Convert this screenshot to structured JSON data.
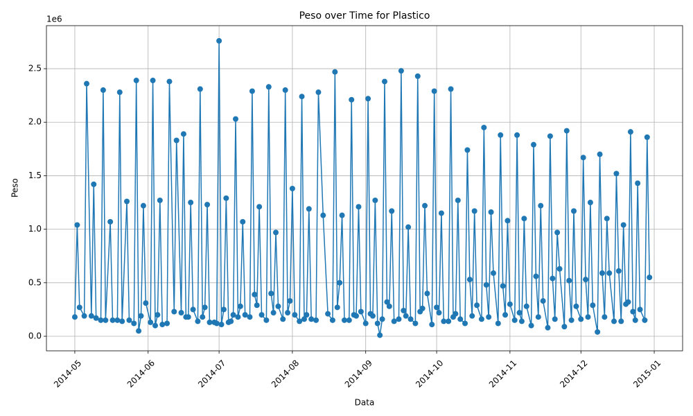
{
  "chart_data": {
    "type": "line",
    "title": "Peso over Time for Plastico",
    "x_label": "Data",
    "y_label": "Peso",
    "y_offset_label": "1e6",
    "grid": true,
    "marker": "circle",
    "xlim": [
      "2014-04-19",
      "2015-01-13"
    ],
    "ylim": [
      -136000,
      2902000
    ],
    "xticks": [
      {
        "value": "2014-05-01",
        "label": "2014-05"
      },
      {
        "value": "2014-06-01",
        "label": "2014-06"
      },
      {
        "value": "2014-07-01",
        "label": "2014-07"
      },
      {
        "value": "2014-08-01",
        "label": "2014-08"
      },
      {
        "value": "2014-09-01",
        "label": "2014-09"
      },
      {
        "value": "2014-10-01",
        "label": "2014-10"
      },
      {
        "value": "2014-11-01",
        "label": "2014-11"
      },
      {
        "value": "2014-12-01",
        "label": "2014-12"
      },
      {
        "value": "2015-01-01",
        "label": "2015-01"
      }
    ],
    "yticks": [
      {
        "value": 0,
        "label": "0.0"
      },
      {
        "value": 500000,
        "label": "0.5"
      },
      {
        "value": 1000000,
        "label": "1.0"
      },
      {
        "value": 1500000,
        "label": "1.5"
      },
      {
        "value": 2000000,
        "label": "2.0"
      },
      {
        "value": 2500000,
        "label": "2.5"
      }
    ],
    "x": [
      "2014-05-01",
      "2014-05-02",
      "2014-05-03",
      "2014-05-05",
      "2014-05-06",
      "2014-05-08",
      "2014-05-09",
      "2014-05-10",
      "2014-05-12",
      "2014-05-13",
      "2014-05-14",
      "2014-05-16",
      "2014-05-17",
      "2014-05-19",
      "2014-05-20",
      "2014-05-21",
      "2014-05-23",
      "2014-05-24",
      "2014-05-26",
      "2014-05-27",
      "2014-05-28",
      "2014-05-29",
      "2014-05-30",
      "2014-05-31",
      "2014-06-02",
      "2014-06-03",
      "2014-06-04",
      "2014-06-05",
      "2014-06-06",
      "2014-06-07",
      "2014-06-09",
      "2014-06-10",
      "2014-06-12",
      "2014-06-13",
      "2014-06-15",
      "2014-06-16",
      "2014-06-17",
      "2014-06-18",
      "2014-06-19",
      "2014-06-20",
      "2014-06-22",
      "2014-06-23",
      "2014-06-24",
      "2014-06-25",
      "2014-06-26",
      "2014-06-27",
      "2014-06-29",
      "2014-06-30",
      "2014-07-01",
      "2014-07-02",
      "2014-07-03",
      "2014-07-04",
      "2014-07-05",
      "2014-07-06",
      "2014-07-07",
      "2014-07-08",
      "2014-07-09",
      "2014-07-10",
      "2014-07-11",
      "2014-07-12",
      "2014-07-14",
      "2014-07-15",
      "2014-07-16",
      "2014-07-17",
      "2014-07-18",
      "2014-07-19",
      "2014-07-21",
      "2014-07-22",
      "2014-07-23",
      "2014-07-24",
      "2014-07-25",
      "2014-07-26",
      "2014-07-28",
      "2014-07-29",
      "2014-07-30",
      "2014-07-31",
      "2014-08-01",
      "2014-08-02",
      "2014-08-04",
      "2014-08-05",
      "2014-08-06",
      "2014-08-07",
      "2014-08-08",
      "2014-08-09",
      "2014-08-11",
      "2014-08-12",
      "2014-08-14",
      "2014-08-16",
      "2014-08-18",
      "2014-08-19",
      "2014-08-20",
      "2014-08-21",
      "2014-08-22",
      "2014-08-23",
      "2014-08-25",
      "2014-08-26",
      "2014-08-27",
      "2014-08-28",
      "2014-08-29",
      "2014-08-30",
      "2014-09-01",
      "2014-09-02",
      "2014-09-03",
      "2014-09-04",
      "2014-09-05",
      "2014-09-06",
      "2014-09-07",
      "2014-09-08",
      "2014-09-09",
      "2014-09-10",
      "2014-09-11",
      "2014-09-12",
      "2014-09-13",
      "2014-09-15",
      "2014-09-16",
      "2014-09-17",
      "2014-09-18",
      "2014-09-19",
      "2014-09-20",
      "2014-09-22",
      "2014-09-23",
      "2014-09-24",
      "2014-09-25",
      "2014-09-26",
      "2014-09-27",
      "2014-09-29",
      "2014-09-30",
      "2014-10-01",
      "2014-10-02",
      "2014-10-03",
      "2014-10-04",
      "2014-10-06",
      "2014-10-07",
      "2014-10-08",
      "2014-10-09",
      "2014-10-10",
      "2014-10-11",
      "2014-10-13",
      "2014-10-14",
      "2014-10-15",
      "2014-10-16",
      "2014-10-17",
      "2014-10-18",
      "2014-10-20",
      "2014-10-21",
      "2014-10-22",
      "2014-10-23",
      "2014-10-24",
      "2014-10-25",
      "2014-10-27",
      "2014-10-28",
      "2014-10-29",
      "2014-10-30",
      "2014-10-31",
      "2014-11-01",
      "2014-11-03",
      "2014-11-04",
      "2014-11-05",
      "2014-11-06",
      "2014-11-07",
      "2014-11-08",
      "2014-11-10",
      "2014-11-11",
      "2014-11-12",
      "2014-11-13",
      "2014-11-14",
      "2014-11-15",
      "2014-11-17",
      "2014-11-18",
      "2014-11-19",
      "2014-11-20",
      "2014-11-21",
      "2014-11-22",
      "2014-11-24",
      "2014-11-25",
      "2014-11-26",
      "2014-11-27",
      "2014-11-28",
      "2014-11-29",
      "2014-12-01",
      "2014-12-02",
      "2014-12-03",
      "2014-12-04",
      "2014-12-05",
      "2014-12-06",
      "2014-12-08",
      "2014-12-09",
      "2014-12-10",
      "2014-12-11",
      "2014-12-12",
      "2014-12-13",
      "2014-12-15",
      "2014-12-16",
      "2014-12-17",
      "2014-12-18",
      "2014-12-19",
      "2014-12-20",
      "2014-12-21",
      "2014-12-22",
      "2014-12-23",
      "2014-12-24",
      "2014-12-25",
      "2014-12-26",
      "2014-12-28",
      "2014-12-29",
      "2014-12-30"
    ],
    "series": [
      {
        "color": "#1f77b4",
        "values": [
          180000,
          1040000,
          270000,
          190000,
          2360000,
          190000,
          1420000,
          170000,
          150000,
          2300000,
          150000,
          1070000,
          150000,
          150000,
          2280000,
          140000,
          1260000,
          150000,
          120000,
          2390000,
          50000,
          190000,
          1220000,
          310000,
          130000,
          2390000,
          100000,
          200000,
          1270000,
          110000,
          120000,
          2380000,
          230000,
          1830000,
          220000,
          1890000,
          180000,
          180000,
          1250000,
          250000,
          140000,
          2310000,
          180000,
          270000,
          1230000,
          130000,
          130000,
          120000,
          2760000,
          110000,
          250000,
          1290000,
          130000,
          140000,
          200000,
          2030000,
          180000,
          280000,
          1070000,
          200000,
          180000,
          2290000,
          390000,
          290000,
          1210000,
          200000,
          150000,
          2330000,
          400000,
          220000,
          970000,
          280000,
          160000,
          2300000,
          220000,
          330000,
          1380000,
          200000,
          140000,
          2240000,
          160000,
          200000,
          1190000,
          160000,
          150000,
          2280000,
          1130000,
          210000,
          150000,
          2470000,
          270000,
          500000,
          1130000,
          150000,
          150000,
          2210000,
          200000,
          190000,
          1210000,
          230000,
          120000,
          2220000,
          210000,
          190000,
          1270000,
          120000,
          10000,
          160000,
          2380000,
          320000,
          280000,
          1170000,
          140000,
          160000,
          2480000,
          240000,
          190000,
          1020000,
          160000,
          120000,
          2430000,
          230000,
          260000,
          1220000,
          400000,
          110000,
          2290000,
          270000,
          220000,
          1150000,
          140000,
          140000,
          2310000,
          180000,
          210000,
          1270000,
          160000,
          120000,
          1740000,
          530000,
          190000,
          1170000,
          290000,
          160000,
          1950000,
          480000,
          180000,
          1160000,
          590000,
          120000,
          1880000,
          470000,
          200000,
          1080000,
          300000,
          150000,
          1880000,
          220000,
          140000,
          1100000,
          280000,
          100000,
          1790000,
          560000,
          180000,
          1220000,
          330000,
          80000,
          1870000,
          540000,
          160000,
          970000,
          630000,
          90000,
          1920000,
          520000,
          150000,
          1170000,
          280000,
          160000,
          1670000,
          530000,
          180000,
          1250000,
          290000,
          40000,
          1700000,
          590000,
          180000,
          1100000,
          590000,
          140000,
          1520000,
          610000,
          140000,
          1040000,
          300000,
          320000,
          1910000,
          230000,
          150000,
          1430000,
          250000,
          150000,
          1860000,
          550000
        ]
      }
    ]
  }
}
